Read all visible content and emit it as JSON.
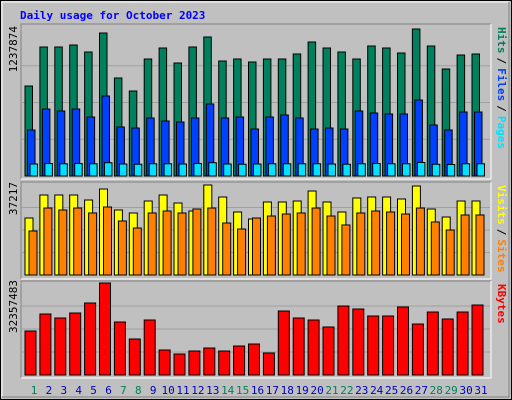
{
  "chart_data": [
    {
      "type": "bar",
      "title": "Daily usage for October 2023",
      "separator": "/",
      "ylim": [
        0,
        1237874
      ],
      "yticks": [
        1237874
      ],
      "series": [
        {
          "name": "Hits",
          "color": "#00805c",
          "values": [
            757900,
            1086300,
            1086300,
            1103200,
            1044200,
            1204200,
            825300,
            715800,
            985300,
            1077900,
            951600,
            1086300,
            1170500,
            968400,
            985300,
            960000,
            985300,
            985300,
            1027400,
            1128400,
            1077900,
            1044200,
            985300,
            1094700,
            1077900,
            1035800,
            1237874,
            1094700,
            901100,
            1018900,
            1027400
          ]
        },
        {
          "name": "Files",
          "color": "#0040ff",
          "values": [
            387400,
            564200,
            547400,
            564200,
            496800,
            673700,
            412600,
            404200,
            488400,
            463200,
            454700,
            488400,
            606300,
            488400,
            496800,
            395800,
            496800,
            513700,
            488400,
            395800,
            404200,
            395800,
            547400,
            530500,
            522100,
            522100,
            640000,
            429500,
            387400,
            538900,
            538900
          ]
        },
        {
          "name": "Pages",
          "color": "#00e0ff",
          "values": [
            101000,
            105000,
            103000,
            105000,
            103000,
            112000,
            101000,
            99000,
            103000,
            103000,
            101000,
            105000,
            112000,
            101000,
            99000,
            101000,
            103000,
            103000,
            103000,
            103000,
            101000,
            99000,
            103000,
            105000,
            103000,
            103000,
            114000,
            99000,
            97000,
            103000,
            103000
          ]
        }
      ]
    },
    {
      "type": "bar",
      "ylim": [
        0,
        37217
      ],
      "yticks": [
        37217
      ],
      "series": [
        {
          "name": "Visits",
          "color": "#ffff00",
          "values": [
            23570,
            33080,
            33080,
            33080,
            31010,
            35560,
            26880,
            25640,
            30600,
            33080,
            29770,
            26460,
            37217,
            32250,
            26050,
            23160,
            30190,
            30190,
            30600,
            34730,
            30190,
            26050,
            31840,
            32250,
            32250,
            31430,
            36800,
            27290,
            23980,
            30600,
            30600
          ]
        },
        {
          "name": "Sites",
          "color": "#ff8000",
          "values": [
            18190,
            27700,
            26880,
            27700,
            25640,
            28120,
            22330,
            19430,
            25640,
            26460,
            25640,
            27290,
            27700,
            21500,
            19020,
            23570,
            24400,
            25220,
            25640,
            27700,
            24400,
            20680,
            25640,
            26460,
            26050,
            25220,
            27700,
            21920,
            18610,
            24810,
            24810
          ]
        }
      ]
    },
    {
      "type": "bar",
      "ylim": [
        0,
        32357483
      ],
      "yticks": [
        32357483
      ],
      "categories": [
        "1",
        "2",
        "3",
        "4",
        "5",
        "6",
        "7",
        "8",
        "9",
        "10",
        "11",
        "12",
        "13",
        "14",
        "15",
        "16",
        "17",
        "18",
        "19",
        "20",
        "21",
        "22",
        "23",
        "24",
        "25",
        "26",
        "27",
        "28",
        "29",
        "30",
        "31"
      ],
      "category_colors": [
        "#00805c",
        "#0000c0",
        "#0000c0",
        "#0000c0",
        "#0000c0",
        "#0000c0",
        "#00805c",
        "#00805c",
        "#0000c0",
        "#0000c0",
        "#0000c0",
        "#0000c0",
        "#0000c0",
        "#00805c",
        "#00805c",
        "#0000c0",
        "#0000c0",
        "#0000c0",
        "#0000c0",
        "#0000c0",
        "#00805c",
        "#00805c",
        "#0000c0",
        "#0000c0",
        "#0000c0",
        "#0000c0",
        "#0000c0",
        "#00805c",
        "#00805c",
        "#0000c0",
        "#0000c0"
      ],
      "series": [
        {
          "name": "KBytes",
          "color": "#ff0000",
          "values": [
            15475000,
            21454000,
            20048000,
            21806000,
            25323000,
            32357483,
            18641000,
            12662000,
            19344000,
            8793000,
            7386000,
            8441000,
            9496000,
            8441000,
            10200000,
            10903000,
            7738000,
            22510000,
            20048000,
            19344000,
            16882000,
            24268000,
            23213000,
            20751000,
            20751000,
            23916000,
            17937000,
            22158000,
            19696000,
            22158000,
            24620000
          ]
        }
      ]
    }
  ]
}
